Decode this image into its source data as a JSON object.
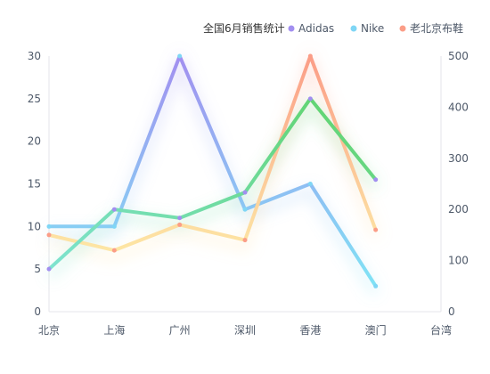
{
  "chart_data": {
    "type": "line",
    "title": "",
    "legend": {
      "title": "全国6月销售统计",
      "placement": "top-right"
    },
    "categories": [
      "北京",
      "上海",
      "广州",
      "深圳",
      "香港",
      "澳门",
      "台湾"
    ],
    "y_left": {
      "ticks": [
        0,
        5,
        10,
        15,
        20,
        25,
        30
      ],
      "range": [
        0,
        30
      ]
    },
    "y_right": {
      "ticks": [
        0,
        100,
        200,
        300,
        400,
        500
      ],
      "range": [
        0,
        500
      ]
    },
    "grid": false,
    "series": [
      {
        "name": "Adidas",
        "axis": "left",
        "values": [
          5,
          12,
          11,
          14,
          25,
          15.5,
          null
        ],
        "gradient": [
          "#7ee3d0",
          "#5fd36a"
        ],
        "legend_color": "#a28ff0"
      },
      {
        "name": "Nike",
        "axis": "left",
        "values": [
          10,
          10,
          30,
          12,
          15,
          3,
          null
        ],
        "gradient": [
          "#a28ff0",
          "#7fd6f5"
        ],
        "legend_color": "#7fd6f5"
      },
      {
        "name": "老北京布鞋",
        "axis": "right",
        "values": [
          150,
          120,
          170,
          140,
          500,
          160,
          null
        ],
        "gradient": [
          "#fde6a4",
          "#fb9d87"
        ],
        "legend_color": "#fb9d87"
      }
    ]
  }
}
